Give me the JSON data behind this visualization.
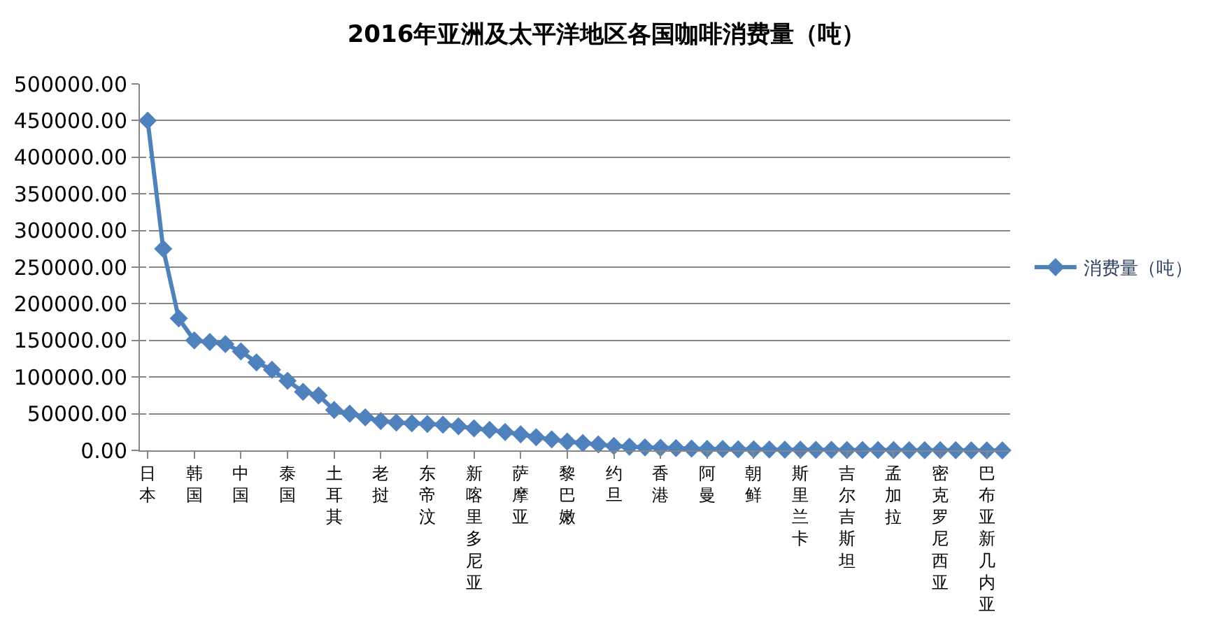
{
  "chart_data": {
    "type": "line",
    "title": "2016年亚洲及太平洋地区各国咖啡消费量（吨）",
    "categories": [
      "日本",
      null,
      null,
      "韩国",
      null,
      null,
      "中国",
      null,
      null,
      "泰国",
      null,
      null,
      "土耳其",
      null,
      null,
      "老挝",
      null,
      null,
      "东帝汶",
      null,
      null,
      "新喀里多尼亚",
      null,
      null,
      "萨摩亚",
      null,
      null,
      "黎巴嫩",
      null,
      null,
      "约旦",
      null,
      null,
      "香港",
      null,
      null,
      "阿曼",
      null,
      null,
      "朝鲜",
      null,
      null,
      "斯里兰卡",
      null,
      null,
      "吉尔吉斯坦",
      null,
      null,
      "孟加拉",
      null,
      null,
      "密克罗尼西亚",
      null,
      null,
      "巴布亚新几内亚",
      null
    ],
    "series": [
      {
        "name": "消费量（吨）",
        "color": "#4f81bd",
        "values": [
          450000,
          275000,
          180000,
          150000,
          148000,
          145000,
          135000,
          120000,
          110000,
          95000,
          80000,
          75000,
          55000,
          50000,
          45000,
          40000,
          38000,
          37000,
          36000,
          35000,
          33000,
          30000,
          28000,
          25000,
          22000,
          18000,
          15000,
          12000,
          10000,
          8000,
          6000,
          5000,
          4000,
          3500,
          3000,
          2500,
          2000,
          2000,
          1500,
          1500,
          1200,
          1000,
          1000,
          800,
          800,
          600,
          500,
          500,
          400,
          300,
          300,
          200,
          200,
          100,
          100,
          100
        ]
      }
    ],
    "ylim": [
      0,
      500000
    ],
    "yticks": [
      {
        "value": 0,
        "label": "0.00"
      },
      {
        "value": 50000,
        "label": "50000.00"
      },
      {
        "value": 100000,
        "label": "100000.00"
      },
      {
        "value": 150000,
        "label": "150000.00"
      },
      {
        "value": 200000,
        "label": "200000.00"
      },
      {
        "value": 250000,
        "label": "250000.00"
      },
      {
        "value": 300000,
        "label": "300000.00"
      },
      {
        "value": 350000,
        "label": "350000.00"
      },
      {
        "value": 400000,
        "label": "400000.00"
      },
      {
        "value": 450000,
        "label": "450000.00"
      },
      {
        "value": 500000,
        "label": "500000.00"
      }
    ],
    "grid": "y",
    "legend": "right",
    "marker": "diamond",
    "line_style": "solid"
  }
}
